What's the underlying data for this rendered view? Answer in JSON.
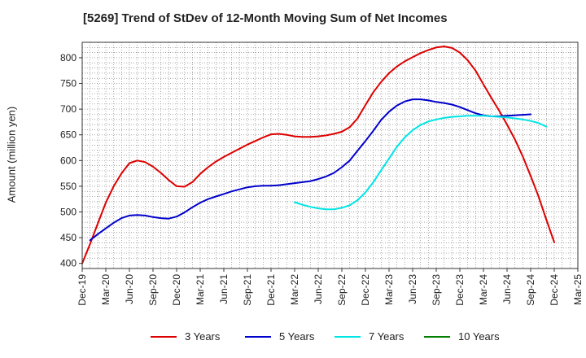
{
  "chart_data": {
    "type": "line",
    "title": "[5269]  Trend of StDev of 12-Month Moving Sum of Net Incomes",
    "xlabel": "",
    "ylabel": "Amount (million yen)",
    "ylim": [
      390,
      830
    ],
    "yticks": [
      400,
      450,
      500,
      550,
      600,
      650,
      700,
      750,
      800
    ],
    "x_tick_labels": [
      "Dec-19",
      "Mar-20",
      "Jun-20",
      "Sep-20",
      "Dec-20",
      "Mar-21",
      "Jun-21",
      "Sep-21",
      "Dec-21",
      "Mar-22",
      "Jun-22",
      "Sep-22",
      "Dec-22",
      "Mar-23",
      "Jun-23",
      "Sep-23",
      "Dec-23",
      "Mar-24",
      "Jun-24",
      "Sep-24",
      "Dec-24",
      "Mar-25"
    ],
    "grid": true,
    "legend_position": "bottom",
    "series": [
      {
        "name": "3 Years",
        "color": "#dd0000",
        "start_month_index": 0,
        "values": [
          400,
          438,
          478,
          518,
          550,
          575,
          595,
          600,
          597,
          588,
          576,
          562,
          550,
          549,
          558,
          574,
          587,
          598,
          607,
          615,
          623,
          631,
          638,
          645,
          651,
          652,
          650,
          647,
          646,
          646,
          647,
          649,
          652,
          656,
          665,
          682,
          708,
          733,
          753,
          770,
          783,
          793,
          801,
          809,
          815,
          820,
          822,
          819,
          810,
          795,
          775,
          748,
          722,
          697,
          670,
          641,
          608,
          570,
          530,
          485,
          441
        ]
      },
      {
        "name": "5 Years",
        "color": "#0000cc",
        "start_month_index": 1,
        "values": [
          445,
          457,
          468,
          479,
          488,
          493,
          494,
          493,
          490,
          488,
          487,
          491,
          499,
          509,
          518,
          525,
          530,
          535,
          540,
          544,
          548,
          550,
          551,
          551,
          552,
          554,
          556,
          558,
          560,
          564,
          569,
          576,
          587,
          600,
          619,
          638,
          658,
          679,
          695,
          707,
          715,
          719,
          719,
          717,
          714,
          712,
          709,
          704,
          698,
          692,
          688,
          686,
          686,
          687,
          688,
          689,
          690
        ]
      },
      {
        "name": "7 Years",
        "color": "#00e5e5",
        "start_month_index": 27,
        "values": [
          519,
          514,
          510,
          507,
          505,
          505,
          508,
          513,
          523,
          538,
          558,
          581,
          604,
          627,
          645,
          659,
          669,
          676,
          680,
          683,
          685,
          686,
          687,
          687,
          687,
          686,
          685,
          684,
          682,
          680,
          677,
          673,
          666
        ]
      },
      {
        "name": "10 Years",
        "color": "#008000",
        "start_month_index": 0,
        "values": []
      }
    ]
  }
}
